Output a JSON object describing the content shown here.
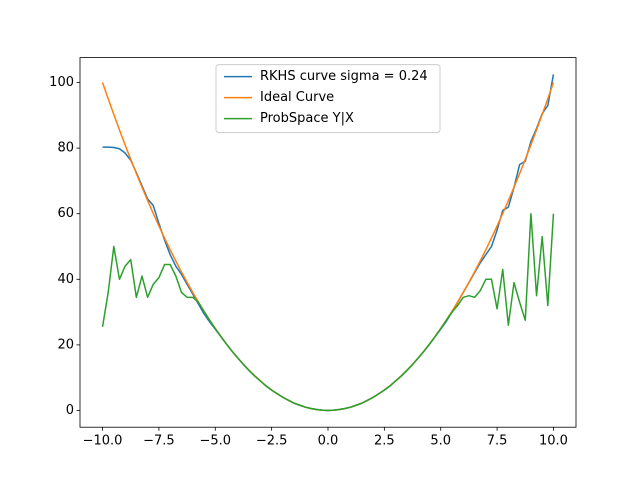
{
  "chart_data": {
    "type": "line",
    "x": [
      -10,
      -9.75,
      -9.5,
      -9.25,
      -9,
      -8.75,
      -8.5,
      -8.25,
      -8,
      -7.75,
      -7.5,
      -7.25,
      -7,
      -6.75,
      -6.5,
      -6.25,
      -6,
      -5.75,
      -5.5,
      -5.25,
      -5,
      -4.75,
      -4.5,
      -4.25,
      -4,
      -3.75,
      -3.5,
      -3.25,
      -3,
      -2.75,
      -2.5,
      -2.25,
      -2,
      -1.75,
      -1.5,
      -1.25,
      -1,
      -0.75,
      -0.5,
      -0.25,
      0,
      0.25,
      0.5,
      0.75,
      1,
      1.25,
      1.5,
      1.75,
      2,
      2.25,
      2.5,
      2.75,
      3,
      3.25,
      3.5,
      3.75,
      4,
      4.25,
      4.5,
      4.75,
      5,
      5.25,
      5.5,
      5.75,
      6,
      6.25,
      6.5,
      6.75,
      7,
      7.25,
      7.5,
      7.75,
      8,
      8.25,
      8.5,
      8.75,
      9,
      9.25,
      9.5,
      9.75,
      10
    ],
    "series": [
      {
        "name": "RKHS curve sigma = 0.24",
        "color": "#1f77b4",
        "values": [
          80.3,
          80.3,
          80.2,
          79.8,
          78.5,
          76.3,
          72.5,
          68.5,
          64.5,
          62.5,
          57,
          52,
          47.5,
          44,
          41.5,
          38.5,
          35.5,
          32.5,
          29.5,
          27,
          24.8,
          22.5,
          20.2,
          18,
          16,
          14,
          12.2,
          10.5,
          9,
          7.5,
          6.2,
          5.1,
          4,
          3.1,
          2.2,
          1.6,
          1,
          0.6,
          0.3,
          0.1,
          0,
          0.1,
          0.3,
          0.6,
          1,
          1.6,
          2.2,
          3.1,
          4,
          5.1,
          6.2,
          7.5,
          9,
          10.5,
          12.2,
          14,
          16,
          18,
          20.2,
          22.5,
          24.8,
          27.2,
          30,
          33,
          36,
          39,
          42,
          45,
          47.5,
          50,
          55,
          61,
          62,
          68,
          75,
          76,
          82,
          86,
          90.5,
          93,
          102.5
        ]
      },
      {
        "name": "Ideal Curve",
        "color": "#ff7f0e",
        "values": [
          100,
          95.0625,
          90.25,
          85.5625,
          81,
          76.5625,
          72.25,
          68.0625,
          64,
          60.0625,
          56.25,
          52.5625,
          49,
          45.5625,
          42.25,
          39.0625,
          36,
          33.0625,
          30.25,
          27.5625,
          25,
          22.5625,
          20.25,
          18.0625,
          16,
          14.0625,
          12.25,
          10.5625,
          9,
          7.5625,
          6.25,
          5.0625,
          4,
          3.0625,
          2.25,
          1.5625,
          1,
          0.5625,
          0.25,
          0.0625,
          0,
          0.0625,
          0.25,
          0.5625,
          1,
          1.5625,
          2.25,
          3.0625,
          4,
          5.0625,
          6.25,
          7.5625,
          9,
          10.5625,
          12.25,
          14.0625,
          16,
          18.0625,
          20.25,
          22.5625,
          25,
          27.5625,
          30.25,
          33.0625,
          36,
          39.0625,
          42.25,
          45.5625,
          49,
          52.5625,
          56.25,
          60.0625,
          64,
          68.0625,
          72.25,
          76.5625,
          81,
          85.5625,
          90.25,
          95.0625,
          100
        ]
      },
      {
        "name": "ProbSpace Y|X",
        "color": "#2ca02c",
        "values": [
          25.5,
          36,
          50,
          40,
          44,
          46,
          34.5,
          41,
          34.5,
          38.5,
          40.5,
          44.5,
          44.5,
          41,
          36,
          34.5,
          34.5,
          33,
          30.2,
          27.5,
          25,
          22.5,
          20.2,
          18,
          16,
          14,
          12.2,
          10.5,
          9,
          7.5,
          6.2,
          5.1,
          4,
          3.1,
          2.2,
          1.6,
          1,
          0.6,
          0.3,
          0.1,
          0,
          0.1,
          0.3,
          0.6,
          1,
          1.6,
          2.2,
          3.1,
          4,
          5.1,
          6.2,
          7.5,
          9,
          10.5,
          12.2,
          14,
          16,
          18,
          20.2,
          22.5,
          25,
          27.5,
          30,
          32,
          34.5,
          35,
          34.5,
          36.5,
          40,
          40,
          31,
          43,
          26,
          39,
          33,
          27.5,
          60,
          35,
          53,
          32,
          60
        ]
      }
    ],
    "xlim": [
      -11,
      11
    ],
    "xticks": [
      {
        "value": -10,
        "label": "−10.0"
      },
      {
        "value": -7.5,
        "label": "−7.5"
      },
      {
        "value": -5,
        "label": "−5.0"
      },
      {
        "value": -2.5,
        "label": "−2.5"
      },
      {
        "value": 0,
        "label": "0.0"
      },
      {
        "value": 2.5,
        "label": "2.5"
      },
      {
        "value": 5,
        "label": "5.0"
      },
      {
        "value": 7.5,
        "label": "7.5"
      },
      {
        "value": 10,
        "label": "10.0"
      }
    ],
    "ylim": [
      -5.1,
      107.6
    ],
    "yticks": [
      0,
      20,
      40,
      60,
      80,
      100
    ],
    "legend": "upper center"
  }
}
